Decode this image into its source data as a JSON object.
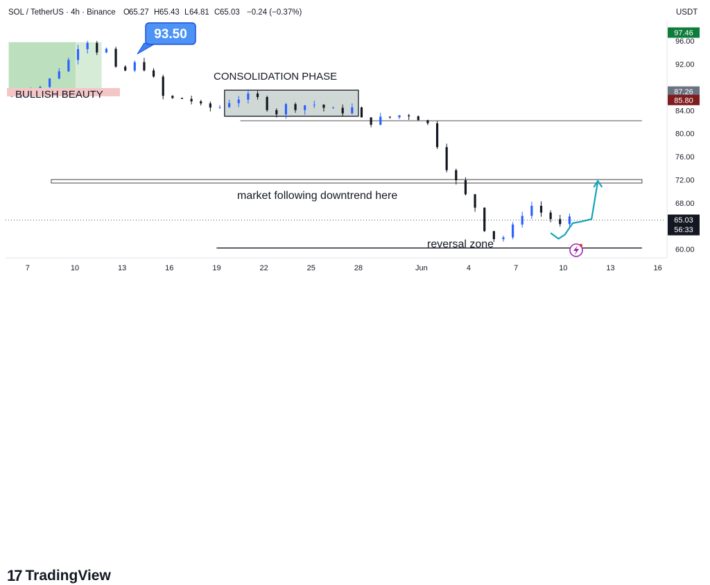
{
  "header": {
    "symbol": "SOL / TetherUS · 4h · Binance",
    "ohlc": {
      "O": "65.27",
      "H": "65.43",
      "L": "64.81",
      "C": "65.03"
    },
    "change": "−0.24 (−0.37%)"
  },
  "currency": "USDT",
  "price_badges": [
    {
      "label": "97.46",
      "value": 97.46,
      "bg": "#0e7c3a"
    },
    {
      "label": "87.26",
      "value": 87.26,
      "bg": "#6b7280"
    },
    {
      "label": "85.80",
      "value": 85.8,
      "bg": "#7f1d1d"
    },
    {
      "label": "65.03",
      "value": 65.03,
      "bg": "#131722",
      "sub": "56:33"
    }
  ],
  "annotations": {
    "bullish": "BULLISH BEAUTY",
    "consolidation": "CONSOLIDATION PHASE",
    "downtrend": "market following downtrend here",
    "reversal": "reversal zone",
    "callout": "93.50"
  },
  "brand": {
    "name": "TradingView",
    "mark": "17"
  },
  "colors": {
    "up": "#2962ff",
    "down": "#131722",
    "callout": "#3b82f6",
    "arrow": "#14a3b8"
  },
  "chart_data": {
    "type": "candlestick",
    "title": "SOL / TetherUS · 4h · Binance",
    "y_ticks": [
      60,
      64,
      68,
      72,
      76,
      80,
      84,
      88,
      92,
      96
    ],
    "y_tick_labels": [
      "60.00",
      "",
      "68.00",
      "72.00",
      "76.00",
      "80.00",
      "84.00",
      "",
      "92.00",
      "96.00"
    ],
    "ylim": [
      58.5,
      99.5
    ],
    "x_ticks": [
      {
        "day": 7,
        "label": "7"
      },
      {
        "day": 10,
        "label": "10"
      },
      {
        "day": 13,
        "label": "13"
      },
      {
        "day": 16,
        "label": "16"
      },
      {
        "day": 19,
        "label": "19"
      },
      {
        "day": 22,
        "label": "22"
      },
      {
        "day": 25,
        "label": "25"
      },
      {
        "day": 28,
        "label": "28"
      },
      {
        "day": 32,
        "label": "Jun"
      },
      {
        "day": 35,
        "label": "4"
      },
      {
        "day": 38,
        "label": "7"
      },
      {
        "day": 41,
        "label": "10"
      },
      {
        "day": 44,
        "label": "13"
      },
      {
        "day": 47,
        "label": "16"
      }
    ],
    "xlim": [
      5.6,
      47.5
    ],
    "last_close": 65.03,
    "path": [
      [
        6.0,
        86.5
      ],
      [
        7.0,
        87.5
      ],
      [
        8.0,
        88.3
      ],
      [
        9.0,
        91.0
      ],
      [
        10.0,
        93.8
      ],
      [
        10.5,
        96.8
      ],
      [
        11.0,
        95.5
      ],
      [
        11.5,
        94.0
      ],
      [
        12.0,
        94.5
      ],
      [
        12.8,
        90.0
      ],
      [
        13.5,
        91.5
      ],
      [
        14.0,
        92.5
      ],
      [
        14.5,
        91.0
      ],
      [
        15.0,
        89.5
      ],
      [
        15.5,
        86.5
      ],
      [
        16.5,
        85.8
      ],
      [
        17.0,
        86.2
      ],
      [
        18.0,
        84.8
      ],
      [
        19.0,
        84.3
      ],
      [
        20.0,
        85.8
      ],
      [
        21.0,
        86.5
      ],
      [
        22.0,
        85.8
      ],
      [
        22.5,
        82.5
      ],
      [
        23.2,
        85.0
      ],
      [
        24.0,
        84.5
      ],
      [
        25.0,
        85.2
      ],
      [
        26.0,
        84.3
      ],
      [
        27.0,
        83.8
      ],
      [
        27.5,
        84.6
      ],
      [
        28.0,
        83.5
      ],
      [
        28.5,
        81.0
      ],
      [
        29.0,
        82.5
      ],
      [
        30.0,
        82.8
      ],
      [
        31.0,
        83.4
      ],
      [
        31.7,
        82.8
      ],
      [
        32.5,
        81.5
      ],
      [
        33.0,
        78.0
      ],
      [
        33.5,
        74.5
      ],
      [
        34.0,
        72.5
      ],
      [
        34.5,
        70.5
      ],
      [
        35.0,
        68.5
      ],
      [
        35.5,
        67.0
      ],
      [
        36.0,
        63.5
      ],
      [
        36.5,
        62.0
      ],
      [
        37.0,
        61.5
      ],
      [
        37.5,
        63.0
      ],
      [
        38.0,
        64.5
      ],
      [
        38.5,
        66.5
      ],
      [
        39.0,
        67.5
      ],
      [
        39.5,
        66.5
      ],
      [
        40.0,
        65.8
      ],
      [
        40.5,
        64.5
      ],
      [
        41.0,
        63.8
      ],
      [
        41.3,
        65.4
      ],
      [
        41.5,
        65.03
      ]
    ],
    "levels": [
      {
        "type": "horizontal-line",
        "y": 82.2,
        "x_from": 20.5,
        "x_to": 46.0
      },
      {
        "type": "horizontal-band",
        "y": 71.8,
        "x_from": 8.5,
        "x_to": 46.0
      },
      {
        "type": "horizontal-line",
        "y": 60.2,
        "x_from": 19.0,
        "x_to": 46.0
      }
    ],
    "boxes": [
      {
        "name": "bullish-zone",
        "x_from": 5.8,
        "x_to": 11.7,
        "y_from": 87.0,
        "y_to": 95.8
      },
      {
        "name": "consolidation-box",
        "x_from": 19.5,
        "x_to": 28.0,
        "y_from": 83.0,
        "y_to": 87.5
      }
    ],
    "projection": {
      "x": [
        40.2,
        40.7,
        41.1,
        41.6,
        42.2,
        42.8,
        43.2
      ],
      "y": [
        62.8,
        61.8,
        62.5,
        64.5,
        64.8,
        65.2,
        71.8
      ]
    }
  }
}
